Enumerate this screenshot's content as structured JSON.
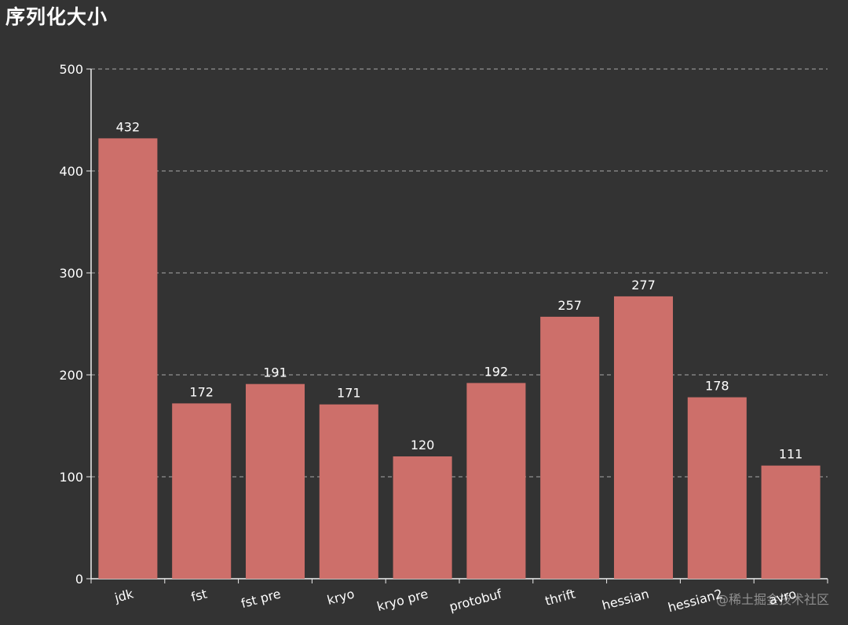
{
  "chart_data": {
    "type": "bar",
    "title": "序列化大小",
    "categories": [
      "jdk",
      "fst",
      "fst pre",
      "kryo",
      "kryo pre",
      "protobuf",
      "thrift",
      "hessian",
      "hessian2",
      "avro"
    ],
    "values": [
      432,
      172,
      191,
      171,
      120,
      192,
      257,
      277,
      178,
      111
    ],
    "ylim": [
      0,
      500
    ],
    "yticks": [
      0,
      100,
      200,
      300,
      400,
      500
    ],
    "xlabel": "",
    "ylabel": "",
    "grid": true,
    "legend": "none"
  },
  "colors": {
    "background": "#333333",
    "bar": "#cd6f6a",
    "text": "#ffffff",
    "axis": "#eeeeee",
    "grid": "#aaaaaa"
  },
  "watermark": "@稀土掘金技术社区"
}
